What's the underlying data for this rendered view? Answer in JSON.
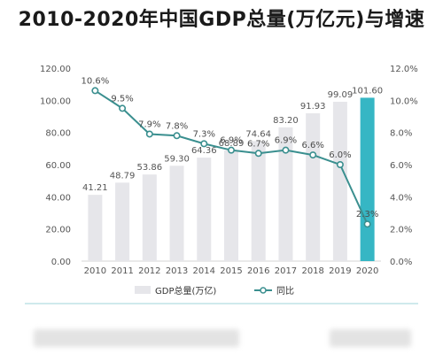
{
  "title": "2010-2020年中国GDP总量(万亿元)与增速",
  "chart_data": {
    "type": "bar",
    "title": "2010-2020年中国GDP总量(万亿元)与增速",
    "categories": [
      "2010",
      "2011",
      "2012",
      "2013",
      "2014",
      "2015",
      "2016",
      "2017",
      "2018",
      "2019",
      "2020"
    ],
    "series": [
      {
        "name": "GDP总量(万亿)",
        "type": "bar",
        "axis": "left",
        "values": [
          41.21,
          48.79,
          53.86,
          59.3,
          64.36,
          68.89,
          74.64,
          83.2,
          91.93,
          99.09,
          101.6
        ],
        "labels": [
          "41.21",
          "48.79",
          "53.86",
          "59.30",
          "64.36",
          "68.89",
          "74.64",
          "83.20",
          "91.93",
          "99.09",
          "101.60"
        ]
      },
      {
        "name": "同比",
        "type": "line",
        "axis": "right",
        "values": [
          10.6,
          9.5,
          7.9,
          7.8,
          7.3,
          6.9,
          6.7,
          6.9,
          6.6,
          6.0,
          2.3
        ],
        "labels": [
          "10.6%",
          "9.5%",
          "7.9%",
          "7.8%",
          "7.3%",
          "6.9%",
          "6.7%",
          "6.9%",
          "6.6%",
          "6.0%",
          "2.3%"
        ]
      }
    ],
    "y_left": {
      "ylim": [
        0,
        120
      ],
      "ticks": [
        "0.00",
        "20.00",
        "40.00",
        "60.00",
        "80.00",
        "100.00",
        "120.00"
      ]
    },
    "y_right": {
      "ylim": [
        0,
        12
      ],
      "ticks": [
        "0.0%",
        "2.0%",
        "4.0%",
        "6.0%",
        "8.0%",
        "10.0%",
        "12.0%"
      ]
    },
    "legend": [
      "GDP总量(万亿)",
      "同比"
    ],
    "legend_position": "bottom",
    "grid": false,
    "colors": {
      "bar": "#e6e6ea",
      "bar_highlight": "#36b6c4",
      "line": "#3a8f8f",
      "marker_fill": "#ffffff",
      "text": "#555555",
      "line_label": "#4a4a4a"
    }
  }
}
